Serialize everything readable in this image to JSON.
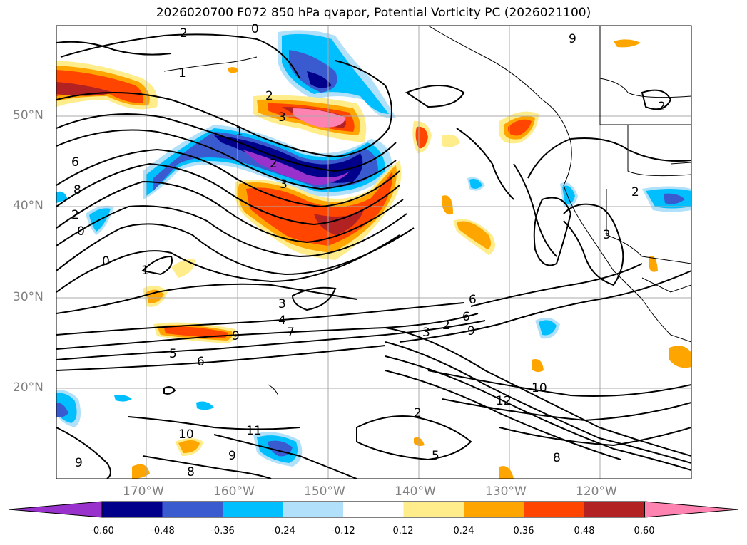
{
  "title": "2026020700 F072 850 hPa qvapor, Potential Vorticity PC (2026021100)",
  "lat_labels": [
    "50°N",
    "40°N",
    "30°N",
    "20°N"
  ],
  "lon_labels": [
    "170°W",
    "160°W",
    "150°W",
    "140°W",
    "130°W",
    "120°W"
  ],
  "colorbar": {
    "ticks": [
      "-0.60",
      "-0.48",
      "-0.36",
      "-0.24",
      "-0.12",
      "0.12",
      "0.24",
      "0.36",
      "0.48",
      "0.60"
    ],
    "colors": [
      "#9932cc",
      "#00008b",
      "#3a5bd0",
      "#00bfff",
      "#b0e0fa",
      "#ffffff",
      "#ffec8b",
      "#ffa500",
      "#ff4500",
      "#b22222",
      "#ff83b0"
    ]
  },
  "contour_labels": [
    "2",
    "0",
    "1",
    "2",
    "3",
    "1",
    "2",
    "3",
    "6",
    "8",
    "2",
    "0",
    "0",
    "1",
    "3",
    "4",
    "7",
    "9",
    "5",
    "6",
    "6",
    "3",
    "2",
    "6",
    "9",
    "10",
    "12",
    "11",
    "9",
    "8",
    "10",
    "9",
    "8",
    "2",
    "5",
    "3",
    "2",
    "2",
    "9"
  ]
}
